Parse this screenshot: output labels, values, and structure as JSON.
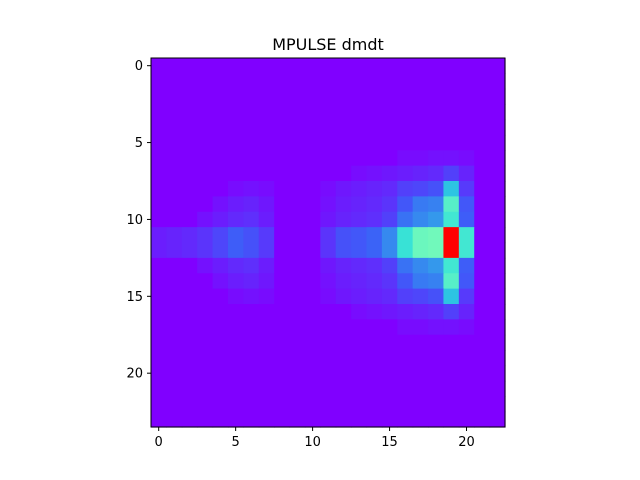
{
  "chart_data": {
    "type": "heatmap",
    "title": "MPULSE dmdt",
    "xlabel": "",
    "ylabel": "",
    "colormap": "rainbow",
    "colormap_stops": [
      "#8000ff",
      "#3b61f8",
      "#2adddd",
      "#80ffb4",
      "#d4dd80",
      "#ff6140",
      "#ff0000"
    ],
    "value_range": [
      0,
      1
    ],
    "nrows": 24,
    "ncols": 23,
    "xlim": [
      -0.5,
      22.5
    ],
    "ylim": [
      23.5,
      -0.5
    ],
    "xticks": [
      0,
      5,
      10,
      15,
      20
    ],
    "yticks": [
      0,
      5,
      10,
      15,
      20
    ],
    "grid": false,
    "cells": [
      [
        6,
        16,
        0.02
      ],
      [
        6,
        17,
        0.02
      ],
      [
        6,
        18,
        0.03
      ],
      [
        6,
        19,
        0.03
      ],
      [
        6,
        20,
        0.02
      ],
      [
        7,
        13,
        0.02
      ],
      [
        7,
        14,
        0.03
      ],
      [
        7,
        15,
        0.04
      ],
      [
        7,
        16,
        0.05
      ],
      [
        7,
        17,
        0.06
      ],
      [
        7,
        18,
        0.07
      ],
      [
        7,
        19,
        0.11
      ],
      [
        7,
        20,
        0.06
      ],
      [
        8,
        5,
        0.02
      ],
      [
        8,
        6,
        0.03
      ],
      [
        8,
        7,
        0.02
      ],
      [
        8,
        11,
        0.02
      ],
      [
        8,
        12,
        0.04
      ],
      [
        8,
        13,
        0.05
      ],
      [
        8,
        14,
        0.06
      ],
      [
        8,
        15,
        0.07
      ],
      [
        8,
        16,
        0.11
      ],
      [
        8,
        17,
        0.12
      ],
      [
        8,
        18,
        0.14
      ],
      [
        8,
        19,
        0.3
      ],
      [
        8,
        20,
        0.1
      ],
      [
        9,
        4,
        0.03
      ],
      [
        9,
        5,
        0.05
      ],
      [
        9,
        6,
        0.06
      ],
      [
        9,
        7,
        0.04
      ],
      [
        9,
        11,
        0.03
      ],
      [
        9,
        12,
        0.05
      ],
      [
        9,
        13,
        0.06
      ],
      [
        9,
        14,
        0.07
      ],
      [
        9,
        15,
        0.09
      ],
      [
        9,
        16,
        0.15
      ],
      [
        9,
        17,
        0.2
      ],
      [
        9,
        18,
        0.21
      ],
      [
        9,
        19,
        0.42
      ],
      [
        9,
        20,
        0.15
      ],
      [
        10,
        3,
        0.03
      ],
      [
        10,
        4,
        0.05
      ],
      [
        10,
        5,
        0.07
      ],
      [
        10,
        6,
        0.08
      ],
      [
        10,
        7,
        0.05
      ],
      [
        10,
        11,
        0.04
      ],
      [
        10,
        12,
        0.06
      ],
      [
        10,
        13,
        0.07
      ],
      [
        10,
        14,
        0.08
      ],
      [
        10,
        15,
        0.11
      ],
      [
        10,
        16,
        0.19
      ],
      [
        10,
        17,
        0.22
      ],
      [
        10,
        18,
        0.24
      ],
      [
        10,
        19,
        0.38
      ],
      [
        10,
        20,
        0.16
      ],
      [
        11,
        0,
        0.05
      ],
      [
        11,
        1,
        0.06
      ],
      [
        11,
        2,
        0.07
      ],
      [
        11,
        3,
        0.09
      ],
      [
        11,
        4,
        0.12
      ],
      [
        11,
        5,
        0.16
      ],
      [
        11,
        6,
        0.14
      ],
      [
        11,
        7,
        0.1
      ],
      [
        11,
        11,
        0.09
      ],
      [
        11,
        12,
        0.14
      ],
      [
        11,
        13,
        0.15
      ],
      [
        11,
        14,
        0.17
      ],
      [
        11,
        15,
        0.22
      ],
      [
        11,
        16,
        0.36
      ],
      [
        11,
        17,
        0.46
      ],
      [
        11,
        18,
        0.47
      ],
      [
        11,
        19,
        1.0
      ],
      [
        11,
        20,
        0.38
      ],
      [
        12,
        0,
        0.05
      ],
      [
        12,
        1,
        0.06
      ],
      [
        12,
        2,
        0.07
      ],
      [
        12,
        3,
        0.09
      ],
      [
        12,
        4,
        0.12
      ],
      [
        12,
        5,
        0.16
      ],
      [
        12,
        6,
        0.14
      ],
      [
        12,
        7,
        0.1
      ],
      [
        12,
        11,
        0.09
      ],
      [
        12,
        12,
        0.14
      ],
      [
        12,
        13,
        0.15
      ],
      [
        12,
        14,
        0.17
      ],
      [
        12,
        15,
        0.22
      ],
      [
        12,
        16,
        0.36
      ],
      [
        12,
        17,
        0.46
      ],
      [
        12,
        18,
        0.47
      ],
      [
        12,
        19,
        1.0
      ],
      [
        12,
        20,
        0.38
      ],
      [
        13,
        3,
        0.03
      ],
      [
        13,
        4,
        0.05
      ],
      [
        13,
        5,
        0.07
      ],
      [
        13,
        6,
        0.08
      ],
      [
        13,
        7,
        0.05
      ],
      [
        13,
        11,
        0.04
      ],
      [
        13,
        12,
        0.06
      ],
      [
        13,
        13,
        0.07
      ],
      [
        13,
        14,
        0.08
      ],
      [
        13,
        15,
        0.11
      ],
      [
        13,
        16,
        0.19
      ],
      [
        13,
        17,
        0.22
      ],
      [
        13,
        18,
        0.24
      ],
      [
        13,
        19,
        0.38
      ],
      [
        13,
        20,
        0.16
      ],
      [
        14,
        4,
        0.03
      ],
      [
        14,
        5,
        0.05
      ],
      [
        14,
        6,
        0.06
      ],
      [
        14,
        7,
        0.04
      ],
      [
        14,
        11,
        0.03
      ],
      [
        14,
        12,
        0.05
      ],
      [
        14,
        13,
        0.06
      ],
      [
        14,
        14,
        0.07
      ],
      [
        14,
        15,
        0.09
      ],
      [
        14,
        16,
        0.15
      ],
      [
        14,
        17,
        0.2
      ],
      [
        14,
        18,
        0.21
      ],
      [
        14,
        19,
        0.42
      ],
      [
        14,
        20,
        0.15
      ],
      [
        15,
        5,
        0.02
      ],
      [
        15,
        6,
        0.03
      ],
      [
        15,
        7,
        0.02
      ],
      [
        15,
        11,
        0.02
      ],
      [
        15,
        12,
        0.04
      ],
      [
        15,
        13,
        0.05
      ],
      [
        15,
        14,
        0.06
      ],
      [
        15,
        15,
        0.07
      ],
      [
        15,
        16,
        0.11
      ],
      [
        15,
        17,
        0.12
      ],
      [
        15,
        18,
        0.14
      ],
      [
        15,
        19,
        0.3
      ],
      [
        15,
        20,
        0.1
      ],
      [
        16,
        13,
        0.02
      ],
      [
        16,
        14,
        0.03
      ],
      [
        16,
        15,
        0.04
      ],
      [
        16,
        16,
        0.05
      ],
      [
        16,
        17,
        0.06
      ],
      [
        16,
        18,
        0.07
      ],
      [
        16,
        19,
        0.11
      ],
      [
        16,
        20,
        0.06
      ],
      [
        17,
        16,
        0.02
      ],
      [
        17,
        17,
        0.02
      ],
      [
        17,
        18,
        0.03
      ],
      [
        17,
        19,
        0.03
      ],
      [
        17,
        20,
        0.02
      ]
    ]
  }
}
